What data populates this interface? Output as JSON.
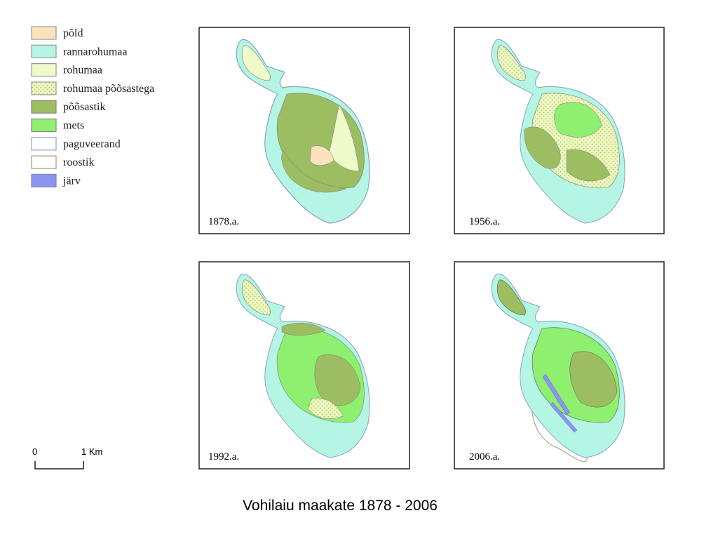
{
  "legend": [
    {
      "label": "põld",
      "color": "#fde3bd",
      "stroke": "#999999"
    },
    {
      "label": "rannarohumaa",
      "color": "#b4f5e4",
      "stroke": "#999999"
    },
    {
      "label": "rohumaa",
      "color": "#eefac8",
      "stroke": "#999999"
    },
    {
      "label": "rohumaa põõsastega",
      "color": "#eef7c2",
      "stroke": "#999999",
      "dotted": true
    },
    {
      "label": "põõsastik",
      "color": "#9cbd62",
      "stroke": "#888888"
    },
    {
      "label": "mets",
      "color": "#8ef06e",
      "stroke": "#888888"
    },
    {
      "label": "paguveerand",
      "color": "#ffffff",
      "stroke": "#8aa0c8"
    },
    {
      "label": "roostik",
      "color": "#ffffff",
      "stroke": "#a89478"
    },
    {
      "label": "järv",
      "color": "#8c94ee",
      "stroke": "#7a80d8"
    }
  ],
  "panels": [
    {
      "label": "1878.a."
    },
    {
      "label": "1956.a."
    },
    {
      "label": "1992.a."
    },
    {
      "label": "2006.a."
    }
  ],
  "scale_bar": {
    "start": "0",
    "end": "1 Km"
  },
  "title": "Vohilaiu maakate  1878 - 2006"
}
